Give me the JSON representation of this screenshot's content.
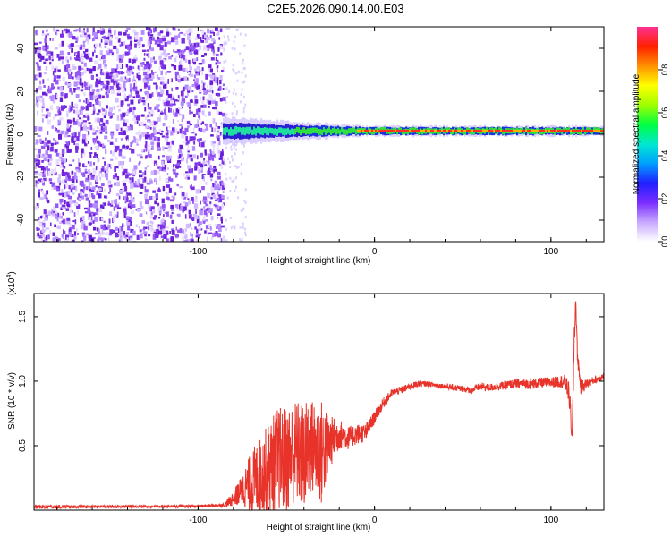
{
  "title": "C2E5.2026.090.14.00.E03",
  "colors": {
    "snr_line": "#e8332a",
    "spectrogram_noise": "#7d2ee8",
    "colorbar_stops": [
      "#ffffff",
      "#c8a8ff",
      "#7a2cff",
      "#2020ff",
      "#00a0ff",
      "#00e8d0",
      "#00ff40",
      "#a0ff00",
      "#ffff00",
      "#ff9000",
      "#ff2000",
      "#ff3090"
    ]
  },
  "chart_data": [
    {
      "type": "heatmap",
      "name": "spectrogram",
      "xlabel": "Height of straight line (km)",
      "ylabel": "Frequency (Hz)",
      "xlim": [
        -193,
        130
      ],
      "ylim": [
        -50,
        50
      ],
      "xticks": [
        -100,
        0,
        100
      ],
      "yticks": [
        -40,
        -20,
        0,
        20,
        40
      ],
      "xtick_labels": [
        "-100",
        "0",
        "100"
      ],
      "ytick_labels": [
        "-40",
        "-20",
        "0",
        "20",
        "40"
      ],
      "noise_region_end_km": -86,
      "signal_center_hz": 1.5,
      "colorbar": {
        "label": "Normalized spectral amplitude",
        "range": [
          0,
          1
        ],
        "ticks": [
          0.0,
          0.2,
          0.4,
          0.6,
          0.8
        ],
        "tick_labels": [
          "0.0",
          "0.2",
          "0.4",
          "0.6",
          "0.8"
        ]
      }
    },
    {
      "type": "line",
      "name": "snr",
      "xlabel": "Height of straight line (km)",
      "ylabel": "SNR (10 * v/v)",
      "multiplier_label": "(x10",
      "multiplier_exponent": "4",
      "multiplier_close": ")",
      "xlim": [
        -193,
        130
      ],
      "ylim": [
        0,
        16800
      ],
      "xticks": [
        -100,
        0,
        100
      ],
      "yticks": [
        5000,
        10000,
        15000
      ],
      "xtick_labels": [
        "-100",
        "0",
        "100"
      ],
      "ytick_labels": [
        "0.5",
        "1.0",
        "1.5"
      ],
      "series": [
        {
          "name": "SNR",
          "x": [
            -193,
            -150,
            -100,
            -85,
            -80,
            -75,
            -70,
            -65,
            -60,
            -55,
            -50,
            -45,
            -40,
            -35,
            -30,
            -25,
            -20,
            -15,
            -10,
            -5,
            0,
            5,
            10,
            15,
            20,
            25,
            30,
            35,
            40,
            45,
            50,
            55,
            60,
            65,
            70,
            75,
            80,
            85,
            90,
            95,
            100,
            105,
            108,
            110,
            111,
            112,
            113,
            114,
            115,
            117,
            120,
            125,
            130
          ],
          "values": [
            250,
            280,
            300,
            400,
            900,
            1600,
            2100,
            2600,
            3200,
            4000,
            3900,
            4600,
            4100,
            4900,
            4400,
            5300,
            5900,
            5600,
            5900,
            6000,
            7200,
            8300,
            9100,
            9300,
            9600,
            9800,
            9800,
            9700,
            9600,
            9500,
            9400,
            9300,
            9600,
            9500,
            9600,
            9700,
            9800,
            9800,
            9800,
            9900,
            9900,
            10000,
            9900,
            9200,
            7800,
            5400,
            12500,
            16400,
            12000,
            9500,
            9800,
            10100,
            10400
          ],
          "noise_amplitude": [
            150,
            100,
            100,
            150,
            600,
            1200,
            2400,
            3000,
            3600,
            4000,
            4200,
            4000,
            4300,
            3800,
            4200,
            2000,
            1200,
            900,
            800,
            700,
            500,
            400,
            300,
            300,
            250,
            250,
            200,
            200,
            200,
            250,
            250,
            250,
            300,
            300,
            300,
            350,
            350,
            400,
            400,
            400,
            400,
            500,
            600,
            800,
            900,
            500,
            2500,
            600,
            600,
            600,
            350,
            300,
            300
          ]
        }
      ]
    }
  ]
}
